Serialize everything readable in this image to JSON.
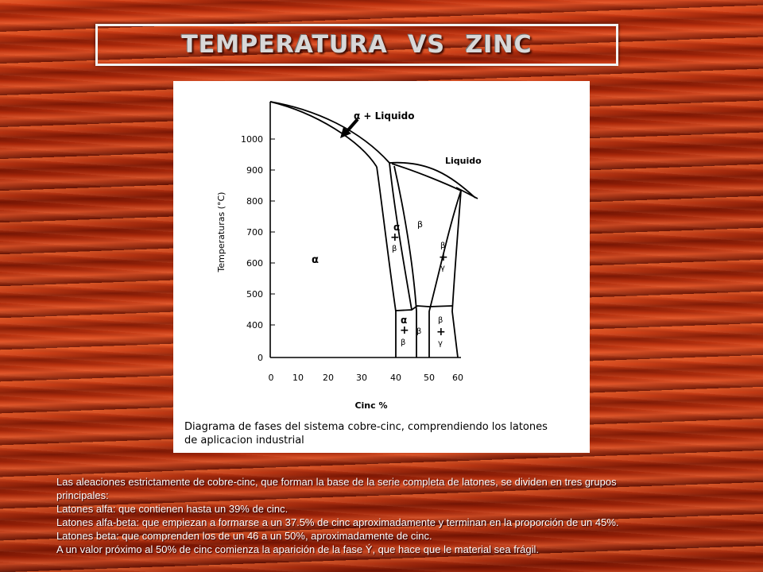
{
  "slide": {
    "title": "TEMPERATURA  VS  ZINC"
  },
  "figure": {
    "caption_line1": "Diagrama de fases del sistema cobre-cinc, comprendiendo los latones",
    "caption_line2": "de aplicacion industrial",
    "y_axis_label": "Temperaturas (°C)",
    "x_axis_label": "Cinc %",
    "y_ticks": [
      "1000",
      "900",
      "800",
      "700",
      "600",
      "500",
      "400",
      "0"
    ],
    "x_ticks": [
      "0",
      "10",
      "20",
      "30",
      "40",
      "50",
      "60"
    ],
    "region_labels": {
      "alpha_plus_liquid": "α + Liquido",
      "liquid": "Liquido",
      "alpha": "α",
      "beta_upper": "β",
      "alpha_beta_upper": [
        "α",
        "+",
        "β"
      ],
      "beta_gamma_upper": [
        "β",
        "+",
        "γ"
      ],
      "alpha_beta_lower": [
        "α",
        "+",
        "β"
      ],
      "beta_lower": "β",
      "beta_gamma_lower": [
        "β",
        "+",
        "γ"
      ]
    }
  },
  "body_text": {
    "lines": [
      "Las aleaciones estrictamente de cobre-cinc, que forman la base de la serie completa de latones, se dividen en tres grupos",
      "principales:",
      "Latones alfa: que contienen hasta un 39% de cinc.",
      "Latones alfa-beta: que empiezan a formarse a un 37.5% de cinc aproximadamente y terminan en la proporción de un 45%.",
      "Latones beta: que comprenden los de un 46 a un 50%, aproximadamente de cinc.",
      "A un valor próximo al 50% de cinc comienza la aparición de la fase Ý, que hace que le material sea frágil."
    ]
  }
}
